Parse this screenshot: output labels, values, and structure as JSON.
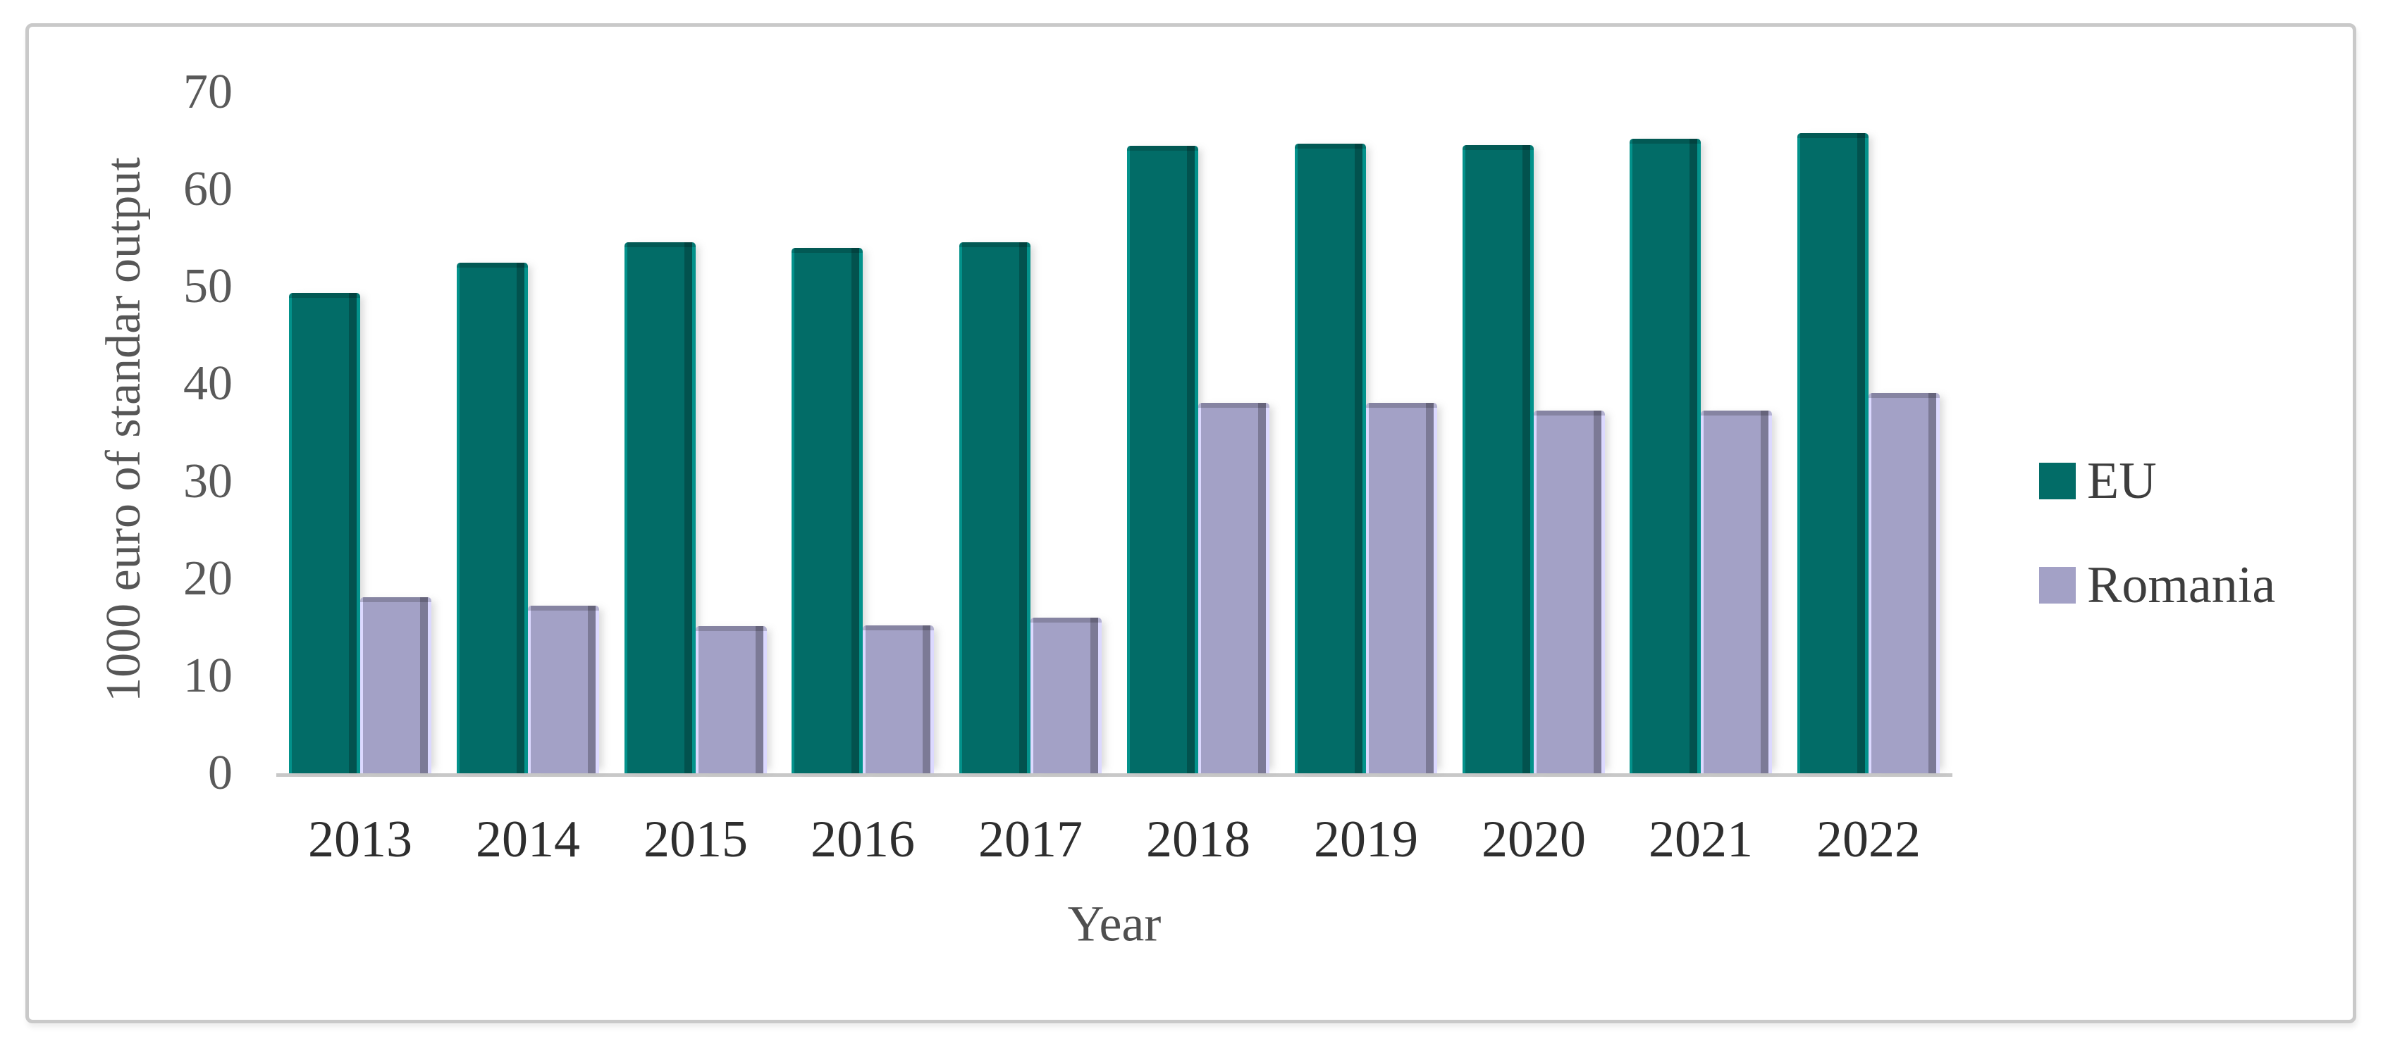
{
  "chart_data": {
    "type": "bar",
    "categories": [
      "2013",
      "2014",
      "2015",
      "2016",
      "2017",
      "2018",
      "2019",
      "2020",
      "2021",
      "2022"
    ],
    "series": [
      {
        "name": "EU",
        "color": "#026c67",
        "values": [
          49.4,
          52.5,
          54.6,
          54.0,
          54.6,
          64.5,
          64.7,
          64.6,
          65.2,
          65.8
        ]
      },
      {
        "name": "Romania",
        "color": "#a3a1c6",
        "values": [
          18.1,
          17.2,
          15.1,
          15.2,
          16.0,
          38.1,
          38.1,
          37.3,
          37.3,
          39.1
        ]
      }
    ],
    "xlabel": "Year",
    "ylabel": "1000 euro of standar output",
    "ylim": [
      0,
      70
    ],
    "yticks": [
      0,
      10,
      20,
      30,
      40,
      50,
      60,
      70
    ],
    "grid": false,
    "legend_position": "right",
    "colors": {
      "axis_line": "#c8c8c8",
      "tick_text": "#595959",
      "category_text": "#2e2e2e",
      "frame_border": "#c9c9c9"
    }
  }
}
